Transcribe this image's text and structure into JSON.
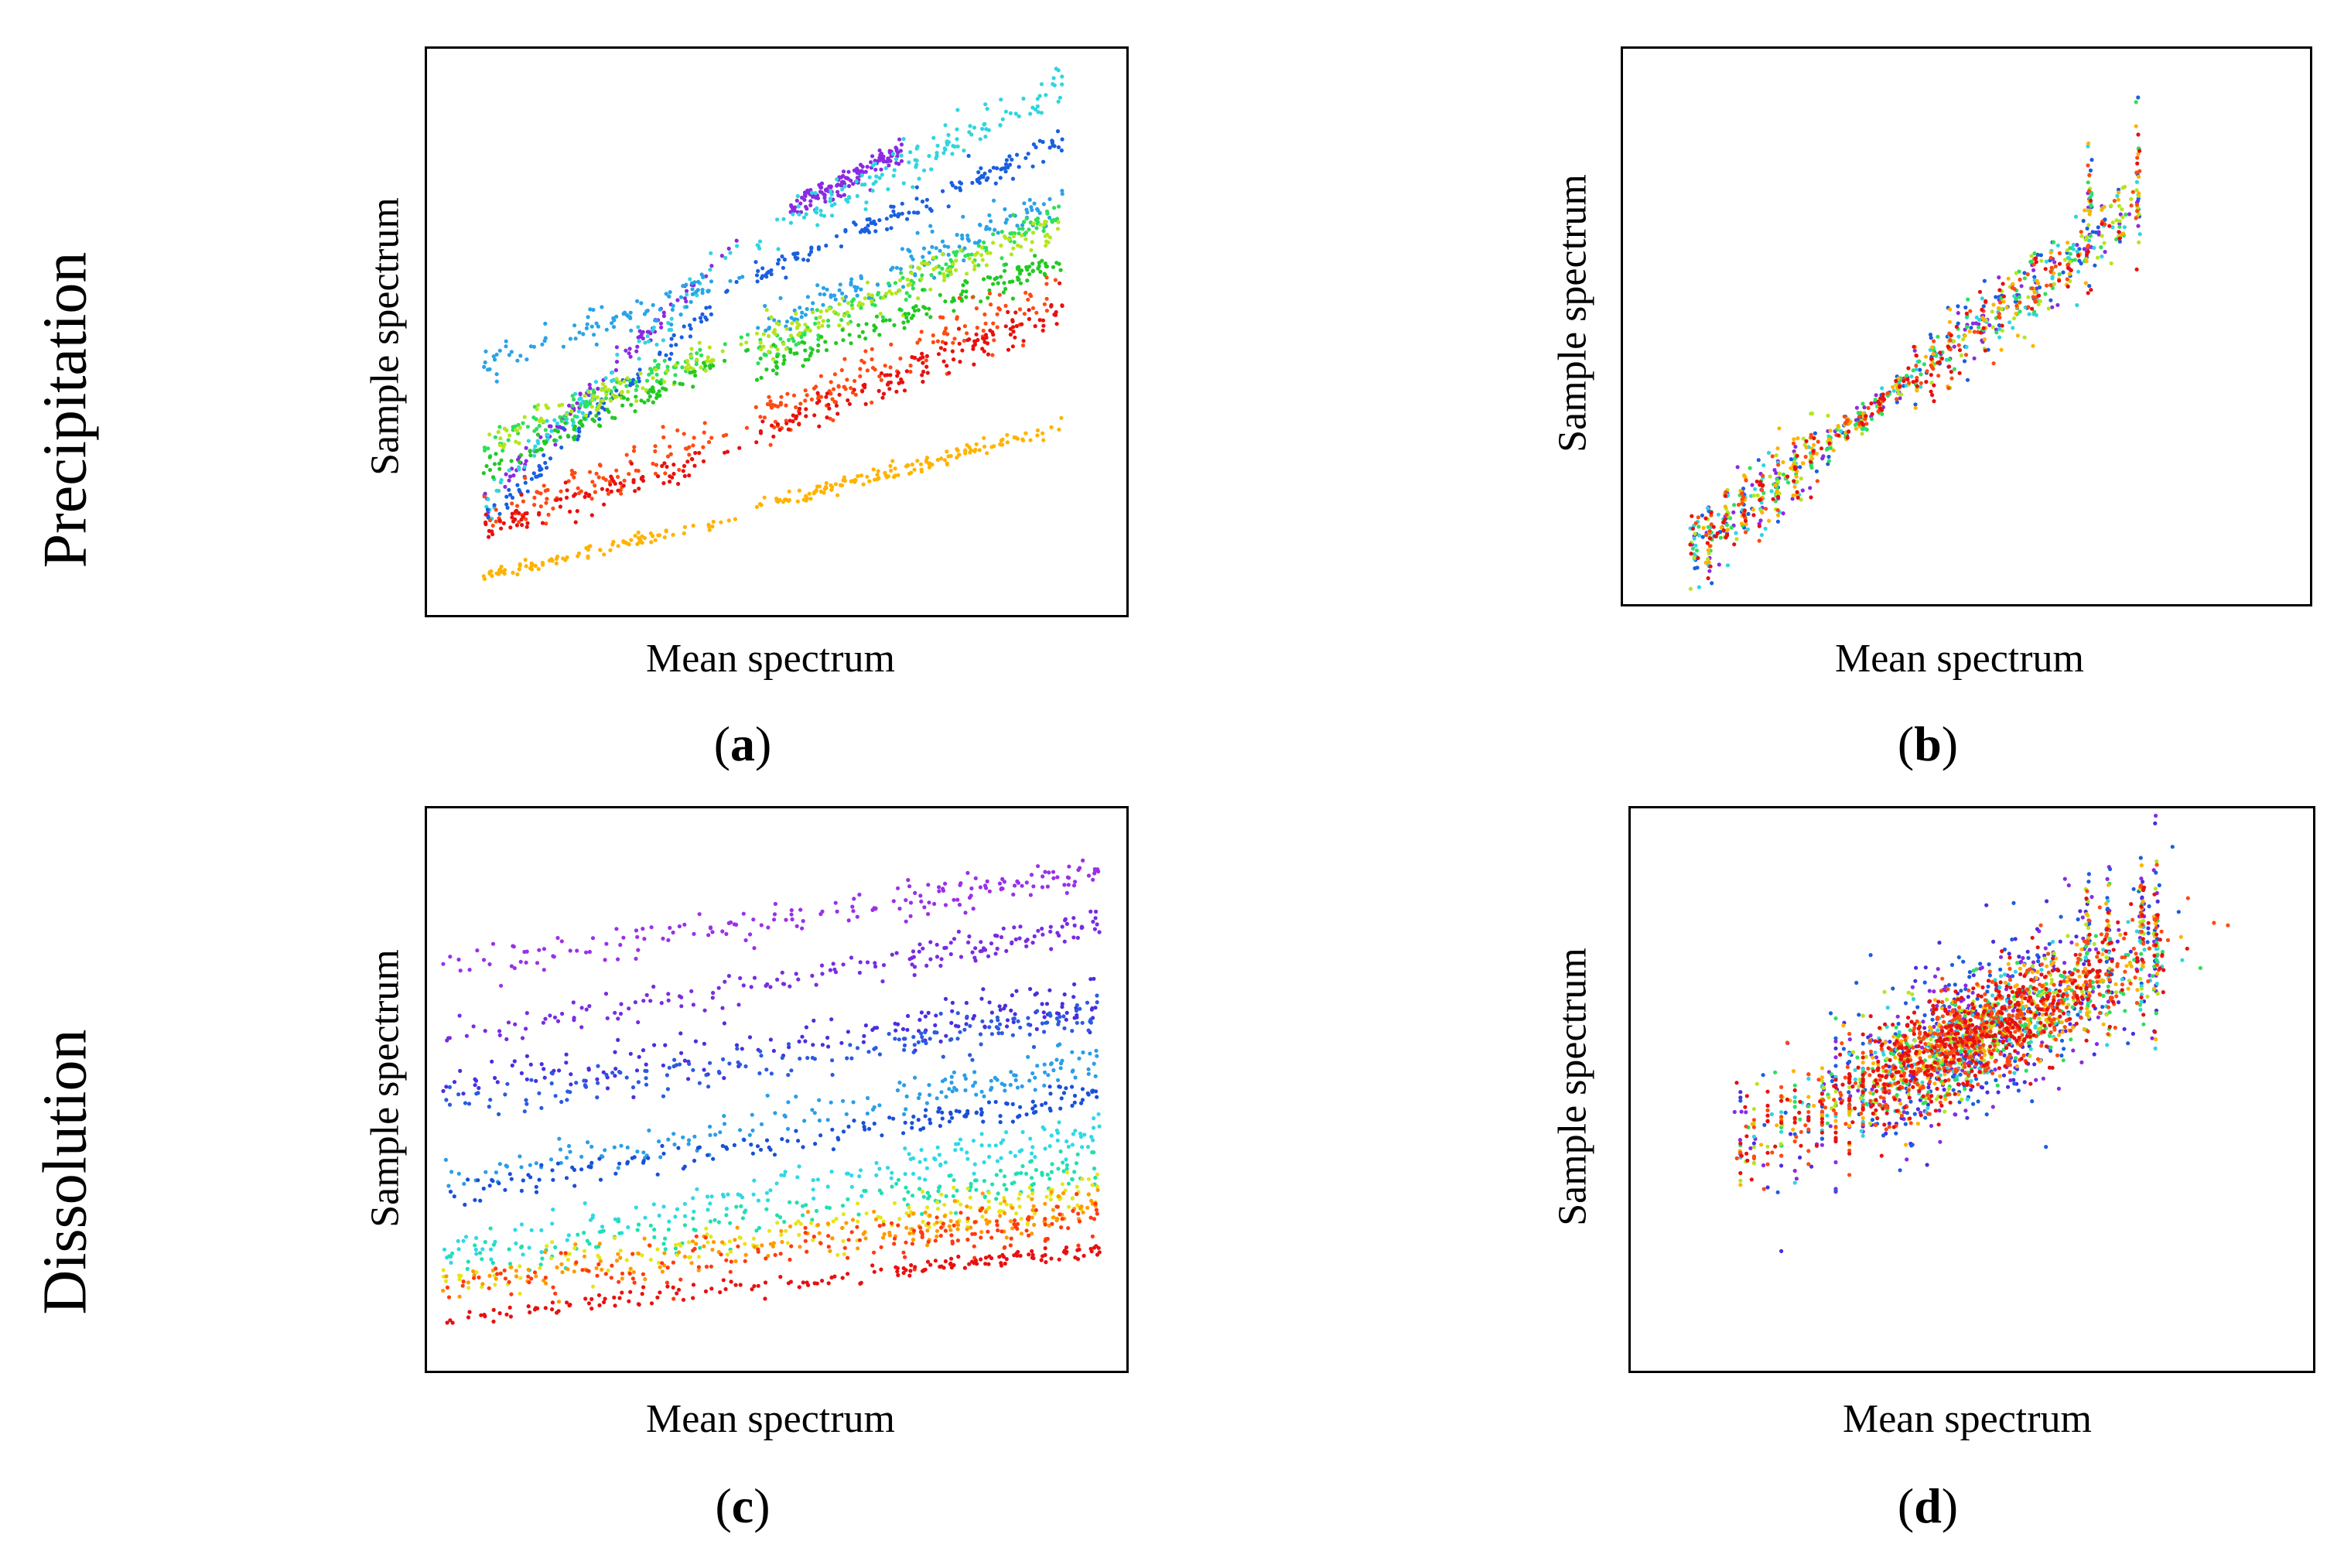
{
  "row_labels": {
    "top": "Precipitation",
    "bottom": "Dissolution"
  },
  "chart_data": [
    {
      "id": "a",
      "type": "scatter",
      "panel_label": "a",
      "xlabel": "Mean spectrum",
      "ylabel": "Sample spectrum",
      "ticks_shown": false,
      "xlim": [
        0,
        1
      ],
      "ylim": [
        0,
        1
      ],
      "series": [
        {
          "name": "violet",
          "color": "#8a2be2",
          "segments": [
            [
              0.08,
              0.41,
              0.2,
              0.62
            ],
            [
              0.52,
              0.68,
              0.72,
              0.82
            ]
          ],
          "spread": 0.01
        },
        {
          "name": "cyan",
          "color": "#30d5e0",
          "segments": [
            [
              0.08,
              0.41,
              0.19,
              0.61
            ],
            [
              0.47,
              0.91,
              0.66,
              0.94
            ]
          ],
          "spread": 0.015
        },
        {
          "name": "blue",
          "color": "#1a5fe0",
          "segments": [
            [
              0.08,
              0.41,
              0.16,
              0.55
            ],
            [
              0.47,
              0.91,
              0.6,
              0.84
            ]
          ],
          "spread": 0.01
        },
        {
          "name": "sky-blue",
          "color": "#2aa3e8",
          "segments": [
            [
              0.08,
              0.41,
              0.44,
              0.58
            ],
            [
              0.47,
              0.91,
              0.5,
              0.74
            ]
          ],
          "spread": 0.015
        },
        {
          "name": "green",
          "color": "#2ee05a",
          "segments": [
            [
              0.08,
              0.41,
              0.3,
              0.47
            ],
            [
              0.47,
              0.91,
              0.46,
              0.71
            ]
          ],
          "spread": 0.012
        },
        {
          "name": "yellow-green",
          "color": "#b5e61d",
          "segments": [
            [
              0.08,
              0.41,
              0.31,
              0.46
            ],
            [
              0.47,
              0.91,
              0.48,
              0.69
            ]
          ],
          "spread": 0.015
        },
        {
          "name": "lime",
          "color": "#22c922",
          "segments": [
            [
              0.08,
              0.41,
              0.25,
              0.44
            ],
            [
              0.47,
              0.91,
              0.43,
              0.63
            ]
          ],
          "spread": 0.01
        },
        {
          "name": "orange-red",
          "color": "#ff4a12",
          "segments": [
            [
              0.08,
              0.41,
              0.17,
              0.31
            ],
            [
              0.47,
              0.91,
              0.34,
              0.58
            ]
          ],
          "spread": 0.022
        },
        {
          "name": "red",
          "color": "#e81010",
          "segments": [
            [
              0.08,
              0.41,
              0.15,
              0.28
            ],
            [
              0.47,
              0.91,
              0.32,
              0.54
            ]
          ],
          "spread": 0.014
        },
        {
          "name": "orange",
          "color": "#ffb300",
          "segments": [
            [
              0.08,
              0.41,
              0.07,
              0.16
            ],
            [
              0.47,
              0.91,
              0.19,
              0.33
            ]
          ],
          "spread": 0.006
        }
      ]
    },
    {
      "id": "b",
      "type": "scatter",
      "panel_label": "b",
      "xlabel": "Mean spectrum",
      "ylabel": "Sample spectrum",
      "ticks_shown": false,
      "xlim": [
        0,
        1
      ],
      "ylim": [
        0,
        1
      ],
      "trend": [
        [
          0.1,
          0.1
        ],
        [
          0.75,
          0.72
        ]
      ],
      "outliers_x": [
        0.68,
        0.75
      ],
      "colors": [
        "#8a2be2",
        "#1a5fe0",
        "#30d5e0",
        "#2ee05a",
        "#b5e61d",
        "#ffb300",
        "#ff4a12",
        "#e81010"
      ]
    },
    {
      "id": "c",
      "type": "scatter",
      "panel_label": "c",
      "xlabel": "Mean spectrum",
      "ylabel": "Sample spectrum",
      "ticks_shown": false,
      "xlim": [
        0,
        1
      ],
      "ylim": [
        0,
        1
      ],
      "series": [
        {
          "name": "violet-1",
          "color": "#9b30e8",
          "start": 0.72,
          "end": 0.89,
          "spread": 0.015
        },
        {
          "name": "violet-2",
          "color": "#7a2be2",
          "start": 0.59,
          "end": 0.8,
          "spread": 0.015
        },
        {
          "name": "indigo",
          "color": "#4a2ee0",
          "start": 0.5,
          "end": 0.66,
          "spread": 0.022
        },
        {
          "name": "blue",
          "color": "#2a5be0",
          "start": 0.47,
          "end": 0.64,
          "spread": 0.016
        },
        {
          "name": "sky-blue",
          "color": "#2a9ee8",
          "start": 0.33,
          "end": 0.56,
          "spread": 0.016
        },
        {
          "name": "royal-blue",
          "color": "#1a4fd8",
          "start": 0.31,
          "end": 0.5,
          "spread": 0.014
        },
        {
          "name": "cyan",
          "color": "#30d8e8",
          "start": 0.21,
          "end": 0.43,
          "spread": 0.018
        },
        {
          "name": "aqua-green",
          "color": "#20e0b0",
          "start": 0.19,
          "end": 0.37,
          "spread": 0.018
        },
        {
          "name": "yellow",
          "color": "#e6e61a",
          "start": 0.16,
          "end": 0.32,
          "spread": 0.018
        },
        {
          "name": "orange",
          "color": "#ff9a00",
          "start": 0.15,
          "end": 0.3,
          "spread": 0.02
        },
        {
          "name": "orange-red",
          "color": "#ff3a10",
          "start": 0.14,
          "end": 0.28,
          "spread": 0.02
        },
        {
          "name": "red",
          "color": "#e81010",
          "start": 0.09,
          "end": 0.22,
          "spread": 0.008
        }
      ]
    },
    {
      "id": "d",
      "type": "scatter",
      "panel_label": "d",
      "xlabel": "Mean spectrum",
      "ylabel": "Sample spectrum",
      "ticks_shown": false,
      "xlim": [
        0,
        1
      ],
      "ylim": [
        0,
        1
      ],
      "trend": [
        [
          0.15,
          0.4
        ],
        [
          0.78,
          0.75
        ]
      ],
      "outliers_x": [
        0.67,
        0.7,
        0.75,
        0.77
      ],
      "colors": [
        "#8a2be2",
        "#4a2ee0",
        "#1a5fe0",
        "#30d5e0",
        "#2ee05a",
        "#b5e61d",
        "#ffb300",
        "#ff4a12",
        "#e81010"
      ]
    }
  ]
}
